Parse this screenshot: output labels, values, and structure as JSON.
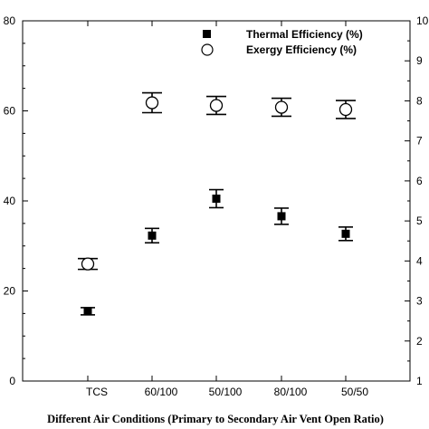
{
  "chart_data": {
    "type": "scatter",
    "xlabel": "Different Air Conditions (Primary to Secondary Air Vent Open Ratio)",
    "ylabel": "",
    "ylabel_right": "",
    "categories": [
      "TCS",
      "60/100",
      "50/100",
      "80/100",
      "50/50"
    ],
    "ylim": [
      0,
      80
    ],
    "yticks": [
      0,
      20,
      40,
      60,
      80
    ],
    "ylim_right": [
      1,
      10
    ],
    "yticks_right": [
      1,
      2,
      3,
      4,
      5,
      6,
      7,
      8,
      9,
      10
    ],
    "grid": false,
    "legend_position": "top-right",
    "series": [
      {
        "name": "Thermal Efficiency (%)",
        "marker": "filled-square",
        "color": "#000000",
        "values": [
          15.5,
          32.3,
          40.5,
          36.6,
          32.7
        ],
        "errors": [
          0.8,
          1.6,
          2.0,
          1.8,
          1.5
        ]
      },
      {
        "name": "Exergy Efficiency (%)",
        "marker": "open-circle",
        "color": "#000000",
        "values": [
          26.0,
          61.8,
          61.2,
          60.8,
          60.3
        ],
        "errors": [
          1.2,
          2.2,
          2.0,
          2.0,
          2.0
        ]
      }
    ]
  }
}
